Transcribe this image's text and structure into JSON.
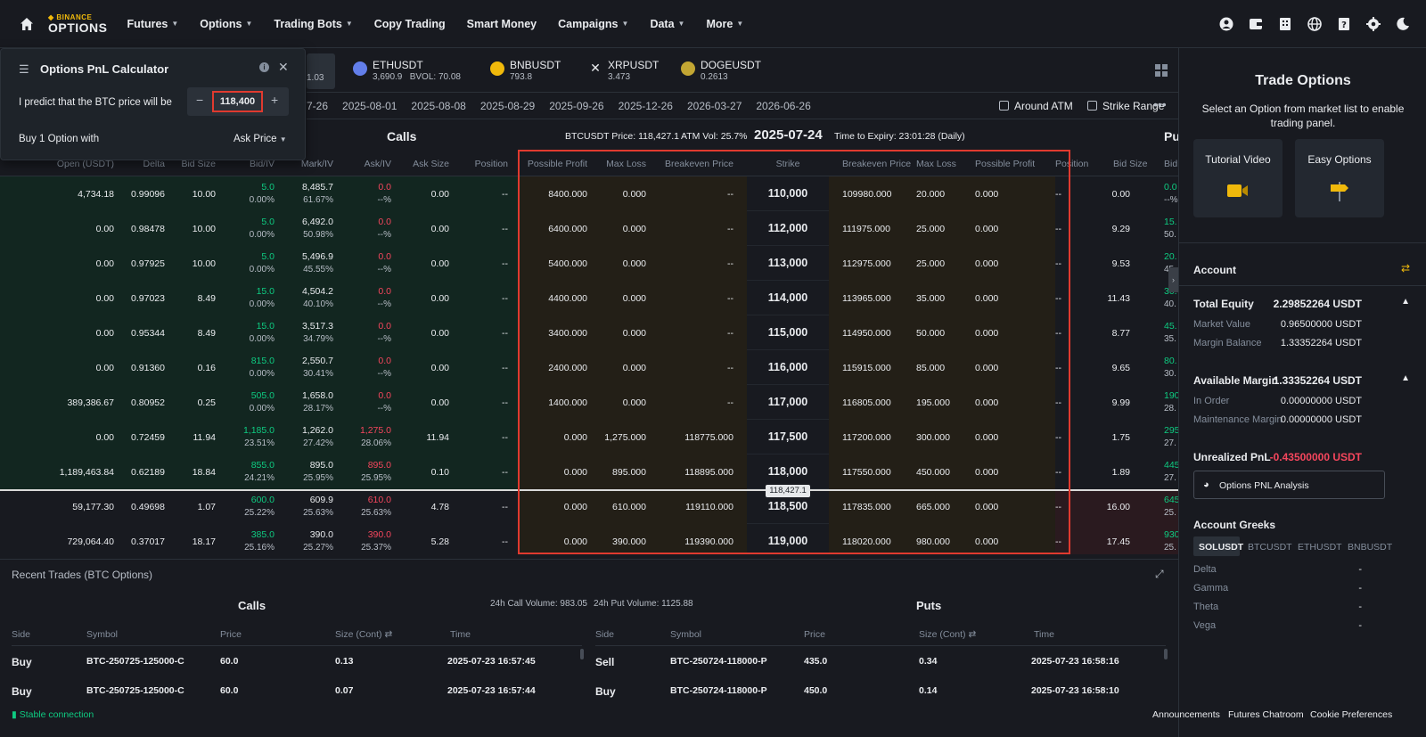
{
  "nav": {
    "logo_top": "BINANCE",
    "logo_bottom": "OPTIONS",
    "items": [
      "Futures",
      "Options",
      "Trading Bots",
      "Copy Trading",
      "Smart Money",
      "Campaigns",
      "Data",
      "More"
    ],
    "dropdown": [
      true,
      true,
      true,
      false,
      false,
      true,
      true,
      true
    ]
  },
  "symbols": [
    {
      "name": "ETHUSDT",
      "price": "3,690.9",
      "bvol": "BVOL: 70.08",
      "color": "#627eea"
    },
    {
      "name": "BNBUSDT",
      "price": "793.8",
      "color": "#f0b90b"
    },
    {
      "name": "XRPUSDT",
      "price": "3.473",
      "color": "#23292f"
    },
    {
      "name": "DOGEUSDT",
      "price": "0.2613",
      "color": "#c2a633"
    }
  ],
  "active_symbol_price": "1.03",
  "dates": [
    "7-26",
    "2025-08-01",
    "2025-08-08",
    "2025-08-29",
    "2025-09-26",
    "2025-12-26",
    "2026-03-27",
    "2026-06-26"
  ],
  "filters": {
    "around_atm": "Around ATM",
    "strike_range": "Strike Range"
  },
  "chain": {
    "calls_title": "Calls",
    "puts_title": "Pu",
    "btc_price": "BTCUSDT Price: 118,427.1",
    "atm_vol": "ATM Vol: 25.7%",
    "expiry": "2025-07-24",
    "time_to_expiry": "Time to Expiry: 23:01:28 (Daily)"
  },
  "columns": {
    "open": "Open (USDT)",
    "delta": "Delta",
    "bid_size": "Bid Size",
    "bid_iv": "Bid/IV",
    "mark_iv": "Mark/IV",
    "ask_iv": "Ask/IV",
    "ask_size": "Ask Size",
    "position": "Position",
    "possible_profit": "Possible Profit",
    "max_loss": "Max Loss",
    "breakeven": "Breakeven Price",
    "strike": "Strike",
    "p_breakeven": "Breakeven Price",
    "p_max_loss": "Max Loss",
    "p_possible_profit": "Possible Profit",
    "p_position": "Position",
    "p_bid_size": "Bid Size",
    "p_bid": "Bid"
  },
  "rows": [
    {
      "open": "4,734.18",
      "delta": "0.99096",
      "bid_size": "10.00",
      "bid": "5.0",
      "bid_iv": "0.00%",
      "mark": "8,485.7",
      "mark_iv": "61.67%",
      "ask": "0.0",
      "ask_iv": "--%",
      "ask_size": "0.00",
      "pos": "--",
      "pp": "8400.000",
      "ml": "0.000",
      "be": "--",
      "strike": "110,000",
      "pbe": "109980.000",
      "pml": "20.000",
      "ppp": "0.000",
      "ppos": "--",
      "pbs": "0.00",
      "pbid": "0.0",
      "pbidiv": "--%"
    },
    {
      "open": "0.00",
      "delta": "0.98478",
      "bid_size": "10.00",
      "bid": "5.0",
      "bid_iv": "0.00%",
      "mark": "6,492.0",
      "mark_iv": "50.98%",
      "ask": "0.0",
      "ask_iv": "--%",
      "ask_size": "0.00",
      "pos": "--",
      "pp": "6400.000",
      "ml": "0.000",
      "be": "--",
      "strike": "112,000",
      "pbe": "111975.000",
      "pml": "25.000",
      "ppp": "0.000",
      "ppos": "--",
      "pbs": "9.29",
      "pbid": "15.",
      "pbidiv": "50."
    },
    {
      "open": "0.00",
      "delta": "0.97925",
      "bid_size": "10.00",
      "bid": "5.0",
      "bid_iv": "0.00%",
      "mark": "5,496.9",
      "mark_iv": "45.55%",
      "ask": "0.0",
      "ask_iv": "--%",
      "ask_size": "0.00",
      "pos": "--",
      "pp": "5400.000",
      "ml": "0.000",
      "be": "--",
      "strike": "113,000",
      "pbe": "112975.000",
      "pml": "25.000",
      "ppp": "0.000",
      "ppos": "--",
      "pbs": "9.53",
      "pbid": "20.",
      "pbidiv": "45."
    },
    {
      "open": "0.00",
      "delta": "0.97023",
      "bid_size": "8.49",
      "bid": "15.0",
      "bid_iv": "0.00%",
      "mark": "4,504.2",
      "mark_iv": "40.10%",
      "ask": "0.0",
      "ask_iv": "--%",
      "ask_size": "0.00",
      "pos": "--",
      "pp": "4400.000",
      "ml": "0.000",
      "be": "--",
      "strike": "114,000",
      "pbe": "113965.000",
      "pml": "35.000",
      "ppp": "0.000",
      "ppos": "--",
      "pbs": "11.43",
      "pbid": "30.",
      "pbidiv": "40."
    },
    {
      "open": "0.00",
      "delta": "0.95344",
      "bid_size": "8.49",
      "bid": "15.0",
      "bid_iv": "0.00%",
      "mark": "3,517.3",
      "mark_iv": "34.79%",
      "ask": "0.0",
      "ask_iv": "--%",
      "ask_size": "0.00",
      "pos": "--",
      "pp": "3400.000",
      "ml": "0.000",
      "be": "--",
      "strike": "115,000",
      "pbe": "114950.000",
      "pml": "50.000",
      "ppp": "0.000",
      "ppos": "--",
      "pbs": "8.77",
      "pbid": "45.",
      "pbidiv": "35."
    },
    {
      "open": "0.00",
      "delta": "0.91360",
      "bid_size": "0.16",
      "bid": "815.0",
      "bid_iv": "0.00%",
      "mark": "2,550.7",
      "mark_iv": "30.41%",
      "ask": "0.0",
      "ask_iv": "--%",
      "ask_size": "0.00",
      "pos": "--",
      "pp": "2400.000",
      "ml": "0.000",
      "be": "--",
      "strike": "116,000",
      "pbe": "115915.000",
      "pml": "85.000",
      "ppp": "0.000",
      "ppos": "--",
      "pbs": "9.65",
      "pbid": "80.",
      "pbidiv": "30."
    },
    {
      "open": "389,386.67",
      "delta": "0.80952",
      "bid_size": "0.25",
      "bid": "505.0",
      "bid_iv": "0.00%",
      "mark": "1,658.0",
      "mark_iv": "28.17%",
      "ask": "0.0",
      "ask_iv": "--%",
      "ask_size": "0.00",
      "pos": "--",
      "pp": "1400.000",
      "ml": "0.000",
      "be": "--",
      "strike": "117,000",
      "pbe": "116805.000",
      "pml": "195.000",
      "ppp": "0.000",
      "ppos": "--",
      "pbs": "9.99",
      "pbid": "190",
      "pbidiv": "28."
    },
    {
      "open": "0.00",
      "delta": "0.72459",
      "bid_size": "11.94",
      "bid": "1,185.0",
      "bid_iv": "23.51%",
      "mark": "1,262.0",
      "mark_iv": "27.42%",
      "ask": "1,275.0",
      "ask_iv": "28.06%",
      "ask_size": "11.94",
      "pos": "--",
      "pp": "0.000",
      "ml": "1,275.000",
      "be": "118775.000",
      "strike": "117,500",
      "pbe": "117200.000",
      "pml": "300.000",
      "ppp": "0.000",
      "ppos": "--",
      "pbs": "1.75",
      "pbid": "295",
      "pbidiv": "27."
    },
    {
      "open": "1,189,463.84",
      "delta": "0.62189",
      "bid_size": "18.84",
      "bid": "855.0",
      "bid_iv": "24.21%",
      "mark": "895.0",
      "mark_iv": "25.95%",
      "ask": "895.0",
      "ask_iv": "25.95%",
      "ask_size": "0.10",
      "pos": "--",
      "pp": "0.000",
      "ml": "895.000",
      "be": "118895.000",
      "strike": "118,000",
      "pbe": "117550.000",
      "pml": "450.000",
      "ppp": "0.000",
      "ppos": "--",
      "pbs": "1.89",
      "pbid": "445",
      "pbidiv": "27."
    },
    {
      "open": "59,177.30",
      "delta": "0.49698",
      "bid_size": "1.07",
      "bid": "600.0",
      "bid_iv": "25.22%",
      "mark": "609.9",
      "mark_iv": "25.63%",
      "ask": "610.0",
      "ask_iv": "25.63%",
      "ask_size": "4.78",
      "pos": "--",
      "pp": "0.000",
      "ml": "610.000",
      "be": "119110.000",
      "strike": "118,500",
      "pbe": "117835.000",
      "pml": "665.000",
      "ppp": "0.000",
      "ppos": "--",
      "pbs": "16.00",
      "pbid": "645",
      "pbidiv": "25."
    },
    {
      "open": "729,064.40",
      "delta": "0.37017",
      "bid_size": "18.17",
      "bid": "385.0",
      "bid_iv": "25.16%",
      "mark": "390.0",
      "mark_iv": "25.27%",
      "ask": "390.0",
      "ask_iv": "25.37%",
      "ask_size": "5.28",
      "pos": "--",
      "pp": "0.000",
      "ml": "390.000",
      "be": "119390.000",
      "strike": "119,000",
      "pbe": "118020.000",
      "pml": "980.000",
      "ppp": "0.000",
      "ppos": "--",
      "pbs": "17.45",
      "pbid": "930",
      "pbidiv": "25."
    }
  ],
  "price_tag": "118,427.1",
  "pnl_calc": {
    "title": "Options PnL Calculator",
    "predict_label": "I predict that the BTC price will be",
    "price_value": "118,400",
    "buy_label": "Buy 1 Option with",
    "price_type": "Ask Price"
  },
  "right": {
    "title": "Trade Options",
    "subtitle": "Select an Option from market list to enable trading panel.",
    "tutorial": "Tutorial Video",
    "easy": "Easy Options",
    "account": "Account",
    "total_equity_lbl": "Total Equity",
    "total_equity": "2.29852264 USDT",
    "market_value_lbl": "Market Value",
    "market_value": "0.96500000 USDT",
    "margin_balance_lbl": "Margin Balance",
    "margin_balance": "1.33352264 USDT",
    "avail_margin_lbl": "Available Margin",
    "avail_margin": "1.33352264 USDT",
    "in_order_lbl": "In Order",
    "in_order": "0.00000000 USDT",
    "maint_lbl": "Maintenance Margin",
    "maint": "0.00000000 USDT",
    "upnl_lbl": "Unrealized PnL",
    "upnl": "-0.43500000 USDT",
    "pnl_analysis": "Options PNL Analysis",
    "greeks": "Account Greeks",
    "greek_tabs": [
      "SOLUSDT",
      "BTCUSDT",
      "ETHUSDT",
      "BNBUSDT"
    ],
    "greek_rows": [
      {
        "name": "Delta",
        "val": "-"
      },
      {
        "name": "Gamma",
        "val": "-"
      },
      {
        "name": "Theta",
        "val": "-"
      },
      {
        "name": "Vega",
        "val": "-"
      }
    ]
  },
  "trades": {
    "title": "Recent Trades (BTC Options)",
    "calls": "Calls",
    "puts": "Puts",
    "call_vol": "24h Call Volume: 983.05",
    "put_vol": "24h Put Volume: 1125.88",
    "headers": {
      "side": "Side",
      "symbol": "Symbol",
      "price": "Price",
      "size": "Size (Cont)",
      "time": "Time"
    },
    "call_rows": [
      {
        "side": "Buy",
        "symbol": "BTC-250725-125000-C",
        "price": "60.0",
        "size": "0.13",
        "time": "2025-07-23 16:57:45"
      },
      {
        "side": "Buy",
        "symbol": "BTC-250725-125000-C",
        "price": "60.0",
        "size": "0.07",
        "time": "2025-07-23 16:57:44"
      }
    ],
    "put_rows": [
      {
        "side": "Sell",
        "symbol": "BTC-250724-118000-P",
        "price": "435.0",
        "size": "0.34",
        "time": "2025-07-23 16:58:16"
      },
      {
        "side": "Buy",
        "symbol": "BTC-250724-118000-P",
        "price": "450.0",
        "size": "0.14",
        "time": "2025-07-23 16:58:10"
      }
    ]
  },
  "status": {
    "connection": "Stable connection",
    "links": [
      "Announcements",
      "Futures Chatroom",
      "Cookie Preferences"
    ]
  }
}
